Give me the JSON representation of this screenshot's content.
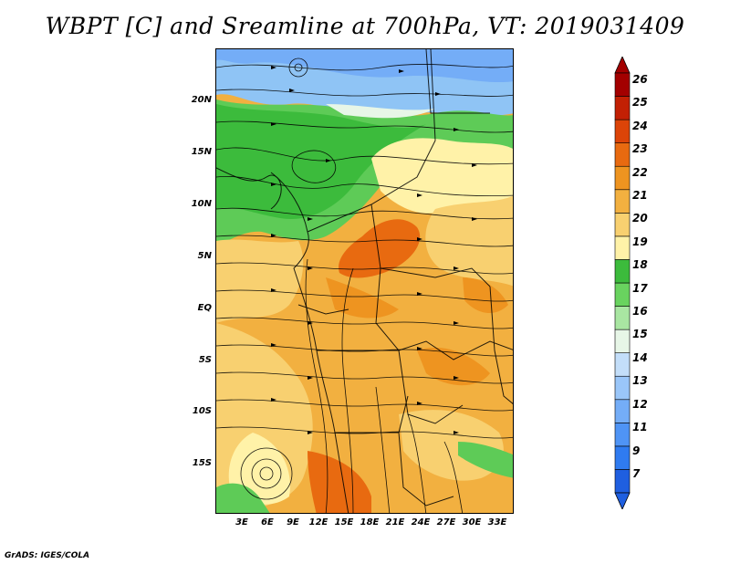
{
  "title": "WBPT [C] and Sreamline at 700hPa, VT: 2019031409",
  "footer": "GrADS: IGES/COLA",
  "axes": {
    "lat_labels": [
      "20N",
      "15N",
      "10N",
      "5N",
      "EQ",
      "5S",
      "10S",
      "15S"
    ],
    "lon_labels": [
      "3E",
      "6E",
      "9E",
      "12E",
      "15E",
      "18E",
      "21E",
      "24E",
      "27E",
      "30E",
      "33E"
    ]
  },
  "colorbar": {
    "levels": [
      "7",
      "9",
      "11",
      "12",
      "13",
      "14",
      "15",
      "16",
      "17",
      "18",
      "19",
      "20",
      "21",
      "22",
      "23",
      "24",
      "25",
      "26"
    ],
    "colors": [
      "#1f5fe0",
      "#2f7bf0",
      "#4f94f5",
      "#74adf7",
      "#9ac6f9",
      "#c3def9",
      "#e7f6e7",
      "#a9e6a2",
      "#69d35f",
      "#3cbb3c",
      "#fff2a8",
      "#f8d070",
      "#f2b040",
      "#ee9420",
      "#e86a10",
      "#dc4408",
      "#c22004",
      "#a30000"
    ]
  },
  "regions": {
    "north_cool": "#8fc4f5",
    "green": "#5ecb57",
    "light_green": "#9fe09b",
    "dark_green": "#3cbb3c",
    "pale_yellow": "#fff2a8",
    "light_orange": "#f8d070",
    "orange": "#f2b040",
    "dark_orange": "#ee9420",
    "red_orange": "#e86a10"
  }
}
